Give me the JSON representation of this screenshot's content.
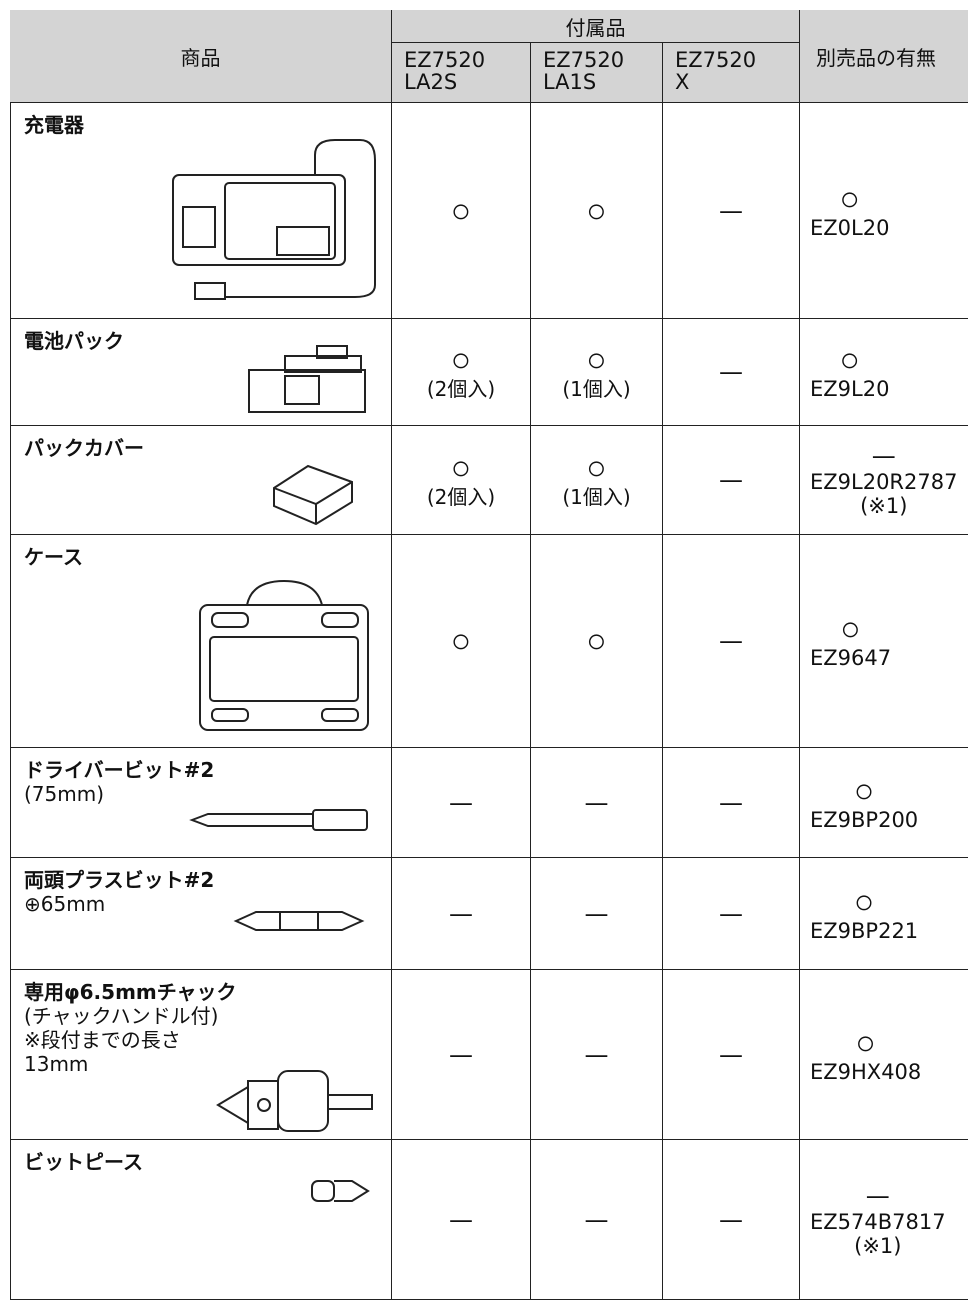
{
  "header": {
    "product": "商品",
    "accessories": "付属品",
    "models": [
      [
        "EZ7520",
        "LA2S"
      ],
      [
        "EZ7520",
        "LA1S"
      ],
      [
        "EZ7520",
        "X"
      ]
    ],
    "separate": "別売品の有無"
  },
  "rows": [
    {
      "name": "充電器",
      "notes": [],
      "cells": [
        [
          "○"
        ],
        [
          "○"
        ],
        [
          "—"
        ]
      ],
      "separate": [
        "○",
        "EZ0L20"
      ]
    },
    {
      "name": "電池パック",
      "notes": [],
      "cells": [
        [
          "○",
          "(2個入)"
        ],
        [
          "○",
          "(1個入)"
        ],
        [
          "—"
        ]
      ],
      "separate": [
        "○",
        "EZ9L20"
      ]
    },
    {
      "name": "パックカバー",
      "notes": [],
      "cells": [
        [
          "○",
          "(2個入)"
        ],
        [
          "○",
          "(1個入)"
        ],
        [
          "—"
        ]
      ],
      "separate": [
        "—",
        "EZ9L20R2787",
        "(※1)"
      ]
    },
    {
      "name": "ケース",
      "notes": [],
      "cells": [
        [
          "○"
        ],
        [
          "○"
        ],
        [
          "—"
        ]
      ],
      "separate": [
        "○",
        "EZ9647"
      ]
    },
    {
      "name": "ドライバービット#2",
      "notes": [
        "(75mm)"
      ],
      "cells": [
        [
          "—"
        ],
        [
          "—"
        ],
        [
          "—"
        ]
      ],
      "separate": [
        "○",
        "EZ9BP200"
      ]
    },
    {
      "name": "両頭プラスビット#2",
      "notes": [
        "⊕65mm"
      ],
      "cells": [
        [
          "—"
        ],
        [
          "—"
        ],
        [
          "—"
        ]
      ],
      "separate": [
        "○",
        "EZ9BP221"
      ]
    },
    {
      "name": "専用φ6.5mmチャック",
      "notes": [
        "(チャックハンドル付)",
        "※段付までの長さ",
        "13mm"
      ],
      "cells": [
        [
          "—"
        ],
        [
          "—"
        ],
        [
          "—"
        ]
      ],
      "separate": [
        "○",
        "EZ9HX408"
      ]
    },
    {
      "name": "ビットピース",
      "notes": [],
      "cells": [
        [
          "—"
        ],
        [
          "—"
        ],
        [
          "—"
        ]
      ],
      "separate": [
        "—",
        "EZ574B7817",
        "(※1)"
      ]
    }
  ]
}
